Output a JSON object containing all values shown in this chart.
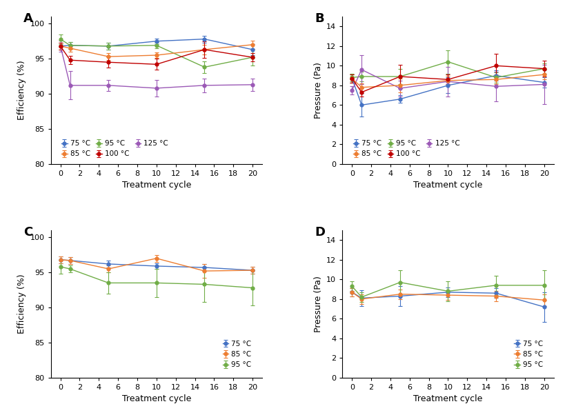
{
  "x": [
    0,
    1,
    5,
    10,
    15,
    20
  ],
  "panel_A": {
    "title": "A",
    "ylabel": "Efficiency (%)",
    "xlabel": "Treatment cycle",
    "ylim": [
      80,
      101
    ],
    "yticks": [
      80,
      85,
      90,
      95,
      100
    ],
    "xticks": [
      0,
      2,
      4,
      6,
      8,
      10,
      12,
      14,
      16,
      18,
      20
    ],
    "series": {
      "75 °C": {
        "color": "#4472c4",
        "y": [
          96.8,
          96.9,
          96.8,
          97.5,
          97.8,
          96.3
        ],
        "yerr": [
          0.5,
          0.5,
          0.5,
          0.4,
          0.5,
          0.8
        ]
      },
      "85 °C": {
        "color": "#ed7d31",
        "y": [
          96.8,
          96.5,
          95.3,
          95.5,
          96.3,
          97.0
        ],
        "yerr": [
          0.5,
          0.5,
          0.5,
          0.4,
          0.7,
          0.6
        ]
      },
      "95 °C": {
        "color": "#70ad47",
        "y": [
          97.8,
          96.9,
          96.8,
          96.9,
          93.8,
          95.2
        ],
        "yerr": [
          0.7,
          0.5,
          0.5,
          0.4,
          0.8,
          1.2
        ]
      },
      "100 °C": {
        "color": "#c00000",
        "y": [
          96.8,
          94.8,
          94.5,
          94.2,
          96.3,
          95.2
        ],
        "yerr": [
          0.5,
          0.6,
          0.8,
          0.8,
          1.2,
          0.6
        ]
      },
      "125 °C": {
        "color": "#9b59b6",
        "y": [
          96.8,
          91.2,
          91.2,
          90.8,
          91.2,
          91.3
        ],
        "yerr": [
          0.8,
          2.0,
          0.8,
          1.2,
          1.0,
          0.9
        ]
      }
    },
    "legend_order": [
      "75 °C",
      "95 °C",
      "125 °C",
      "85 °C",
      "100 °C"
    ]
  },
  "panel_B": {
    "title": "B",
    "ylabel": "Pressure (Pa)",
    "xlabel": "Treatment cycle",
    "ylim": [
      0,
      15
    ],
    "yticks": [
      0,
      2,
      4,
      6,
      8,
      10,
      12,
      14
    ],
    "xticks": [
      0,
      2,
      4,
      6,
      8,
      10,
      12,
      14,
      16,
      18,
      20
    ],
    "series": {
      "75 °C": {
        "color": "#4472c4",
        "y": [
          8.7,
          6.0,
          6.6,
          8.0,
          9.0,
          8.3
        ],
        "yerr": [
          0.4,
          1.2,
          0.4,
          0.8,
          0.5,
          0.5
        ]
      },
      "85 °C": {
        "color": "#ed7d31",
        "y": [
          8.7,
          7.8,
          8.0,
          8.5,
          8.6,
          9.1
        ],
        "yerr": [
          0.4,
          0.4,
          0.7,
          0.5,
          0.5,
          0.5
        ]
      },
      "95 °C": {
        "color": "#70ad47",
        "y": [
          8.8,
          8.9,
          8.9,
          10.4,
          8.8,
          9.7
        ],
        "yerr": [
          0.4,
          0.5,
          0.8,
          1.2,
          0.5,
          0.5
        ]
      },
      "100 °C": {
        "color": "#c00000",
        "y": [
          8.7,
          7.3,
          8.9,
          8.6,
          10.0,
          9.7
        ],
        "yerr": [
          0.4,
          0.4,
          1.2,
          0.5,
          1.2,
          0.8
        ]
      },
      "125 °C": {
        "color": "#9b59b6",
        "y": [
          7.5,
          9.6,
          7.7,
          8.4,
          7.9,
          8.1
        ],
        "yerr": [
          0.4,
          1.5,
          0.8,
          1.5,
          1.5,
          2.0
        ]
      }
    },
    "legend_order": [
      "75 °C",
      "95 °C",
      "125 °C",
      "85 °C",
      "100 °C"
    ]
  },
  "panel_C": {
    "title": "C",
    "ylabel": "Efficiency (%)",
    "xlabel": "Treatment cycle",
    "ylim": [
      80,
      101
    ],
    "yticks": [
      80,
      85,
      90,
      95,
      100
    ],
    "xticks": [
      0,
      2,
      4,
      6,
      8,
      10,
      12,
      14,
      16,
      18,
      20
    ],
    "series": {
      "75 °C": {
        "color": "#4472c4",
        "y": [
          96.8,
          96.7,
          96.2,
          95.9,
          95.7,
          95.3
        ],
        "yerr": [
          0.5,
          0.5,
          0.5,
          0.4,
          0.5,
          0.5
        ]
      },
      "85 °C": {
        "color": "#ed7d31",
        "y": [
          96.8,
          96.7,
          95.5,
          97.0,
          95.2,
          95.3
        ],
        "yerr": [
          0.5,
          0.5,
          0.5,
          0.5,
          1.0,
          0.5
        ]
      },
      "95 °C": {
        "color": "#70ad47",
        "y": [
          95.8,
          95.5,
          93.5,
          93.5,
          93.3,
          92.8
        ],
        "yerr": [
          1.0,
          0.5,
          1.5,
          2.0,
          2.5,
          2.5
        ]
      }
    },
    "legend_order": [
      "75 °C",
      "85 °C",
      "95 °C"
    ]
  },
  "panel_D": {
    "title": "D",
    "ylabel": "Pressure (Pa)",
    "xlabel": "Treatment cycle",
    "ylim": [
      0,
      15
    ],
    "yticks": [
      0,
      2,
      4,
      6,
      8,
      10,
      12,
      14
    ],
    "xticks": [
      0,
      2,
      4,
      6,
      8,
      10,
      12,
      14,
      16,
      18,
      20
    ],
    "series": {
      "75 °C": {
        "color": "#4472c4",
        "y": [
          8.7,
          8.1,
          8.3,
          8.7,
          8.6,
          7.2
        ],
        "yerr": [
          0.4,
          0.8,
          1.0,
          0.5,
          0.5,
          1.5
        ]
      },
      "85 °C": {
        "color": "#ed7d31",
        "y": [
          8.7,
          8.0,
          8.5,
          8.4,
          8.3,
          7.9
        ],
        "yerr": [
          0.4,
          0.5,
          0.5,
          0.5,
          0.5,
          0.6
        ]
      },
      "95 °C": {
        "color": "#70ad47",
        "y": [
          9.3,
          8.2,
          9.7,
          8.8,
          9.4,
          9.4
        ],
        "yerr": [
          0.5,
          0.5,
          1.2,
          1.0,
          1.0,
          1.5
        ]
      }
    },
    "legend_order": [
      "75 °C",
      "85 °C",
      "95 °C"
    ]
  }
}
